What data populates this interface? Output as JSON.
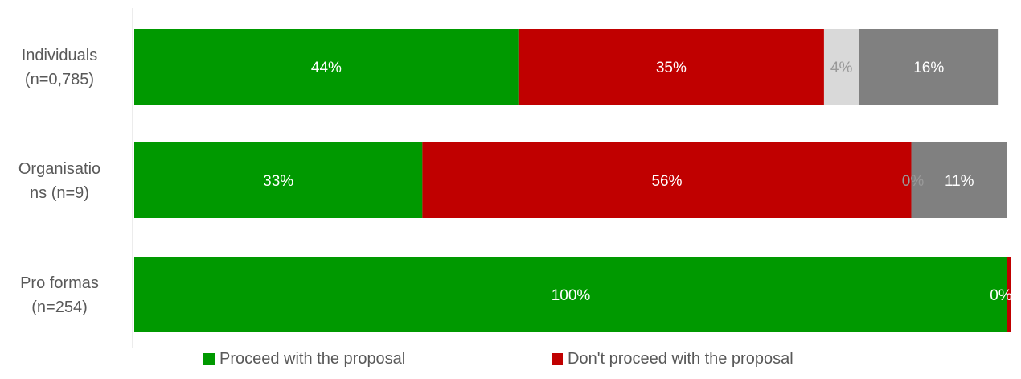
{
  "chart_data": {
    "type": "bar",
    "orientation": "horizontal",
    "stacked": true,
    "categories": [
      [
        "Individuals",
        "(n=0,785)"
      ],
      [
        "Organisatio",
        "ns (n=9)"
      ],
      [
        "Pro formas",
        "(n=254)"
      ]
    ],
    "series": [
      {
        "name": "Proceed with the proposal",
        "color": "#009900",
        "values": [
          44,
          33,
          100
        ],
        "labels": [
          "44%",
          "33%",
          "100%"
        ],
        "label_color": "#ffffff"
      },
      {
        "name": "Don't proceed with the proposal",
        "color": "#c00000",
        "values": [
          35,
          56,
          0
        ],
        "labels": [
          "35%",
          "56%",
          "0%"
        ],
        "label_color": "#ffffff"
      },
      {
        "color": "#d9d9d9",
        "values": [
          4,
          0,
          0
        ],
        "labels": [
          "4%",
          "0%",
          ""
        ],
        "label_color": "#999999"
      },
      {
        "color": "#808080",
        "values": [
          16,
          11,
          0
        ],
        "labels": [
          "16%",
          "11%",
          ""
        ],
        "label_color": "#ffffff"
      }
    ],
    "xlim": [
      0,
      100
    ],
    "grid": false,
    "legend": {
      "position": "bottom",
      "entries": [
        {
          "name": "Proceed with the proposal",
          "color": "#009900"
        },
        {
          "name": "Don't proceed with the proposal",
          "color": "#c00000"
        }
      ]
    }
  }
}
